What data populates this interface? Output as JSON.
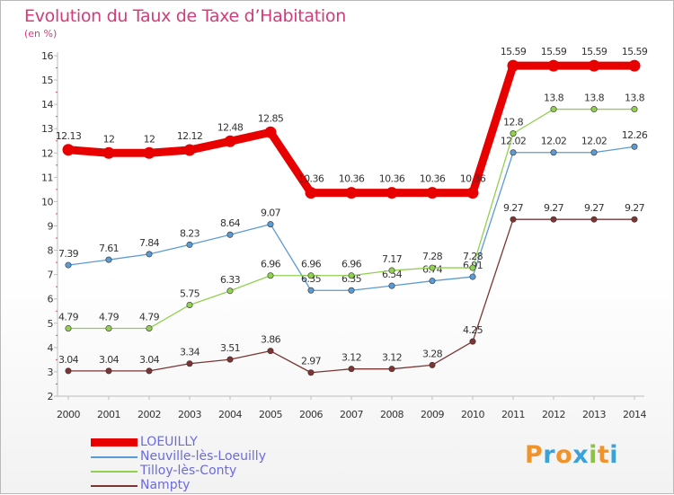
{
  "title": "Evolution du Taux de Taxe d’Habitation",
  "subtitle": "(en %)",
  "logo": {
    "text": "Proxiti",
    "letter_colors": [
      "#f0932b",
      "#3aa2d8",
      "#f0932b",
      "#3aa2d8",
      "#8bc53f",
      "#f0932b",
      "#3aa2d8"
    ]
  },
  "chart_data": {
    "type": "line",
    "x": [
      "2000",
      "2001",
      "2002",
      "2003",
      "2004",
      "2005",
      "2006",
      "2007",
      "2008",
      "2009",
      "2010",
      "2011",
      "2012",
      "2013",
      "2014"
    ],
    "ylim": [
      2,
      16
    ],
    "yticks": [
      "2",
      "3",
      "4",
      "5",
      "6",
      "7",
      "8",
      "9",
      "10",
      "11",
      "12",
      "13",
      "14",
      "15",
      "16"
    ],
    "grid": false,
    "legend_position": "bottom-left",
    "series": [
      {
        "name": "LOEUILLY",
        "color": "#e80000",
        "emphasis": true,
        "values": [
          12.13,
          12,
          12,
          12.12,
          12.48,
          12.85,
          10.36,
          10.36,
          10.36,
          10.36,
          10.36,
          15.59,
          15.59,
          15.59,
          15.59
        ],
        "labels": [
          "12.13",
          "12",
          "12",
          "12.12",
          "12.48",
          "12.85",
          "10.36",
          "10.36",
          "10.36",
          "10.36",
          "10.36",
          "15.59",
          "15.59",
          "15.59",
          "15.59"
        ]
      },
      {
        "name": "Neuville-lès-Loeuilly",
        "color": "#5b9bd5",
        "values": [
          7.39,
          7.61,
          7.84,
          8.23,
          8.64,
          9.07,
          6.35,
          6.35,
          6.54,
          6.74,
          6.91,
          12.02,
          12.02,
          12.02,
          12.26
        ],
        "labels": [
          "7.39",
          "7.61",
          "7.84",
          "8.23",
          "8.64",
          "9.07",
          "6.35",
          "6.35",
          "6.54",
          "6.74",
          "6.91",
          "12.02",
          "12.02",
          "12.02",
          "12.26"
        ]
      },
      {
        "name": "Tilloy-lès-Conty",
        "color": "#92d050",
        "values": [
          4.79,
          4.79,
          4.79,
          5.75,
          6.33,
          6.96,
          6.96,
          6.96,
          7.17,
          7.28,
          7.28,
          12.8,
          13.8,
          13.8,
          13.8
        ],
        "labels": [
          "4.79",
          "4.79",
          "4.79",
          "5.75",
          "6.33",
          "6.96",
          "6.96",
          "6.96",
          "7.17",
          "7.28",
          "7.28",
          "12.8",
          "13.8",
          "13.8",
          "13.8"
        ]
      },
      {
        "name": "Nampty",
        "color": "#7b3535",
        "values": [
          3.04,
          3.04,
          3.04,
          3.34,
          3.51,
          3.86,
          2.97,
          3.12,
          3.12,
          3.28,
          4.25,
          9.27,
          9.27,
          9.27,
          9.27
        ],
        "labels": [
          "3.04",
          "3.04",
          "3.04",
          "3.34",
          "3.51",
          "3.86",
          "2.97",
          "3.12",
          "3.12",
          "3.28",
          "4.25",
          "9.27",
          "9.27",
          "9.27",
          "9.27"
        ]
      }
    ]
  }
}
